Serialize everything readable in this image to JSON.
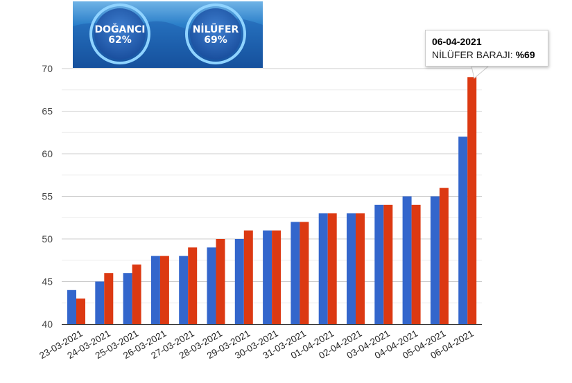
{
  "banner": {
    "badges": [
      {
        "name": "DOĞANCI",
        "percent": "62%"
      },
      {
        "name": "NİLÜFER",
        "percent": "69%"
      }
    ]
  },
  "tooltip": {
    "date": "06-04-2021",
    "label": "NİLÜFER BARAJI:",
    "value": "%69"
  },
  "chart_data": {
    "type": "bar",
    "title": "",
    "xlabel": "",
    "ylabel": "",
    "ylim": [
      40,
      70
    ],
    "yticks": [
      40,
      45,
      50,
      55,
      60,
      65,
      70
    ],
    "grid": true,
    "categories": [
      "23-03-2021",
      "24-03-2021",
      "25-03-2021",
      "26-03-2021",
      "27-03-2021",
      "28-03-2021",
      "29-03-2021",
      "30-03-2021",
      "31-03-2021",
      "01-04-2021",
      "02-04-2021",
      "03-04-2021",
      "04-04-2021",
      "05-04-2021",
      "06-04-2021"
    ],
    "series": [
      {
        "name": "DOĞANCI",
        "color": "#3366cc",
        "values": [
          44,
          45,
          46,
          48,
          48,
          49,
          50,
          51,
          52,
          53,
          53,
          54,
          55,
          55,
          62
        ]
      },
      {
        "name": "NİLÜFER BARAJI",
        "color": "#dc3912",
        "values": [
          43,
          46,
          47,
          48,
          49,
          50,
          51,
          51,
          52,
          53,
          53,
          54,
          54,
          56,
          69
        ]
      }
    ]
  }
}
